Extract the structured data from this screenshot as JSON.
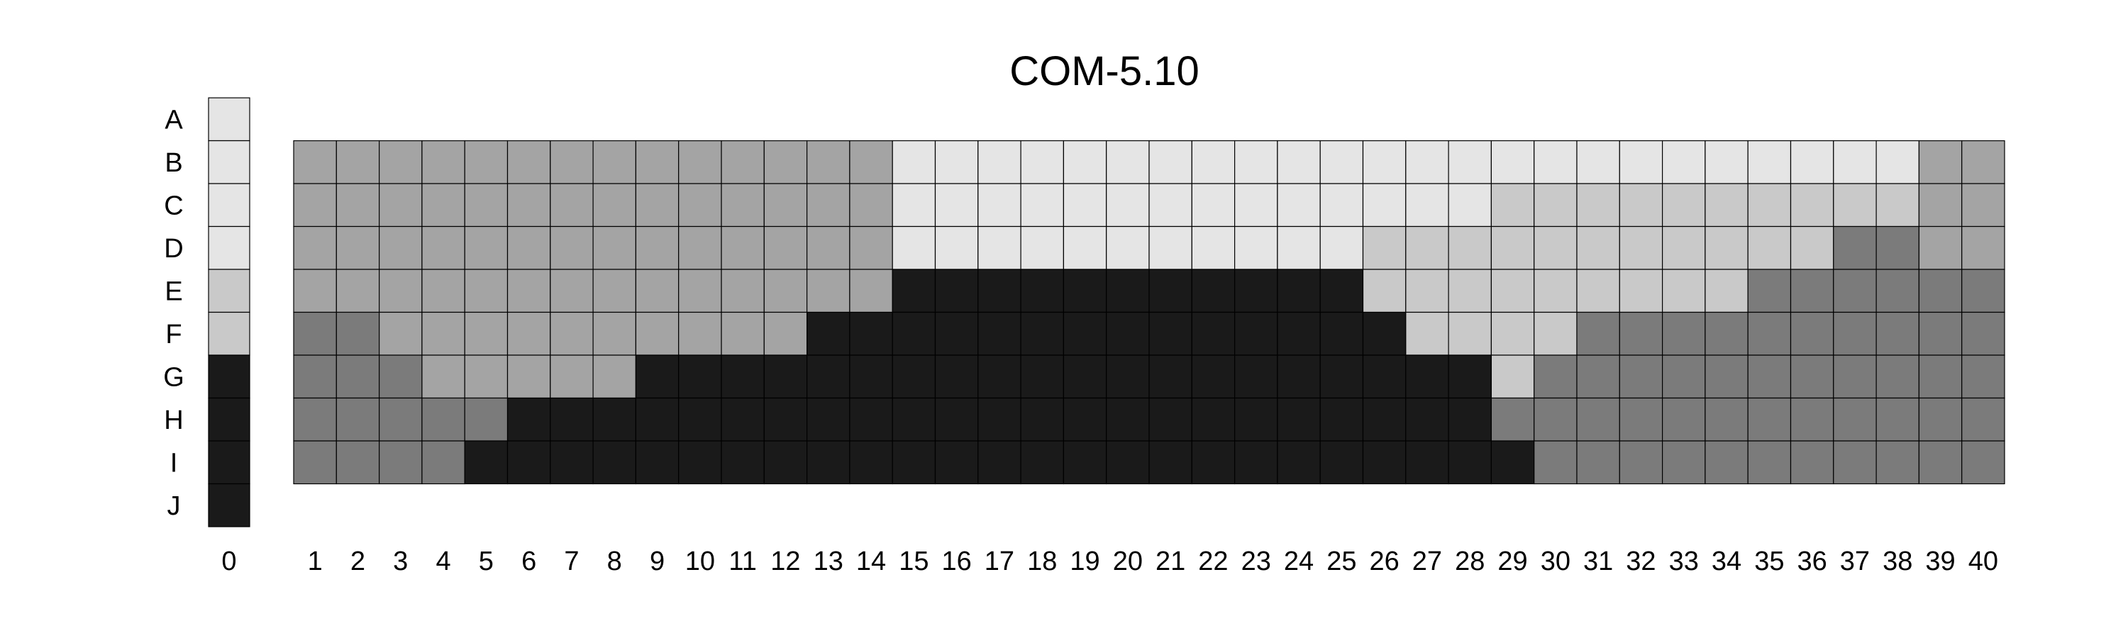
{
  "chart_data": {
    "type": "heatmap",
    "title": "COM-5.10",
    "rows": [
      "A",
      "B",
      "C",
      "D",
      "E",
      "F",
      "G",
      "H",
      "I",
      "J"
    ],
    "columns": [
      "1",
      "2",
      "3",
      "4",
      "5",
      "6",
      "7",
      "8",
      "9",
      "10",
      "11",
      "12",
      "13",
      "14",
      "15",
      "16",
      "17",
      "18",
      "19",
      "20",
      "21",
      "22",
      "23",
      "24",
      "25",
      "26",
      "27",
      "28",
      "29",
      "30",
      "31",
      "32",
      "33",
      "34",
      "35",
      "36",
      "37",
      "38",
      "39",
      "40"
    ],
    "key_label": "0",
    "key_colors": [
      "#e5e5e5",
      "#e5e5e5",
      "#e5e5e5",
      "#e5e5e5",
      "#c9c9c9",
      "#c9c9c9",
      "#1a1a1a",
      "#1a1a1a",
      "#1a1a1a",
      "#1a1a1a"
    ],
    "palette": {
      "light": "#e5e5e5",
      "mid_light": "#c9c9c9",
      "mid": "#a4a4a4",
      "dark_gray": "#7b7b7b",
      "black": "#1a1a1a"
    },
    "grid_rows": [
      "B",
      "C",
      "D",
      "E",
      "F",
      "G",
      "H",
      "I"
    ],
    "cells": [
      "MMMMMMMMMMMMMMLLLLLLLLLLLLLLLLLLLLLLLLMM",
      "MMMMMMMMMMMMMMLLLLLLLLLLLLLLSSSSSSSSSSMM",
      "MMMMMMMMMMMMMMLLLLLLLLLLLSSSSSSSSSSSDDMM",
      "MMMMMMMMMMMMMMBBBBBBBBBBBSSSSSSSSSDDDDDD",
      "DDMMMMMMMMMMBBBBBBBBBBBBBBSSSSDDDDDDDDDD",
      "DDDMMMMMBBBBBBBBBBBBBBBBBBBBSDDDDDDDDDDD",
      "DDDDDBBBBBBBBBBBBBBBBBBBBBBBDDDDDDDDDDDD",
      "DDDDBBBBBBBBBBBBBBBBBBBBBBBBBDDDDDDDDDDD"
    ]
  }
}
